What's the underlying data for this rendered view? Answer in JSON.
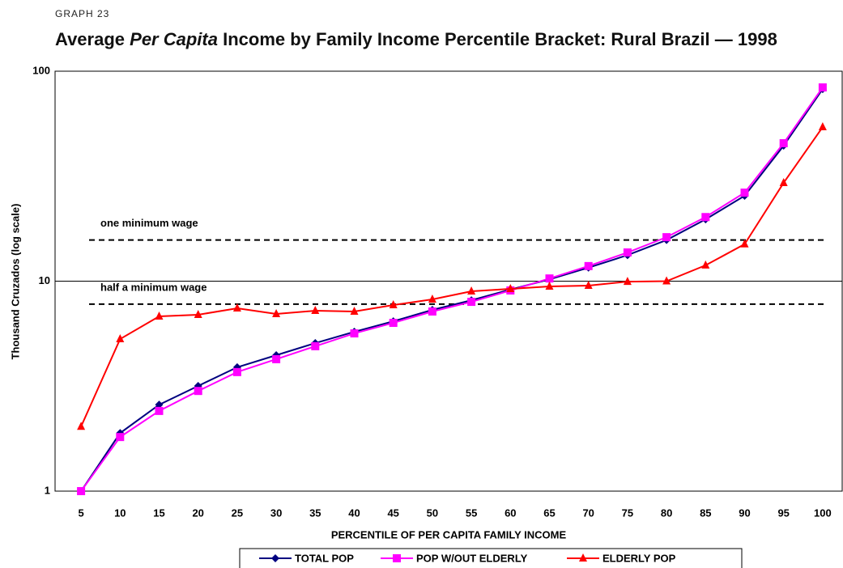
{
  "chart_data": {
    "type": "line",
    "kicker": "GRAPH 23",
    "title_parts": [
      "Average",
      "Per Capita",
      "Income by Family Income Percentile Bracket: Rural Brazil — 1998"
    ],
    "x_label": "PERCENTILE OF PER CAPITA FAMILY INCOME",
    "y_label": "Thousand Cruzados (log  scale)",
    "y_scale": "log",
    "ylim": [
      1,
      100
    ],
    "yticks": [
      1,
      10,
      100
    ],
    "grid": true,
    "categories": [
      "5",
      "10",
      "15",
      "20",
      "25",
      "30",
      "35",
      "40",
      "45",
      "50",
      "55",
      "60",
      "65",
      "70",
      "75",
      "80",
      "85",
      "90",
      "95",
      "100"
    ],
    "series": [
      {
        "name": "TOTAL POP",
        "color": "#000080",
        "marker": "diamond",
        "values": [
          1.0,
          1.89,
          2.58,
          3.17,
          3.89,
          4.44,
          5.07,
          5.74,
          6.44,
          7.3,
          8.11,
          9.12,
          10.2,
          11.6,
          13.3,
          15.7,
          19.7,
          25.5,
          44.2,
          82.2
        ]
      },
      {
        "name": "POP W/OUT ELDERLY",
        "color": "#ff00ff",
        "marker": "square",
        "values": [
          1.0,
          1.81,
          2.41,
          3.0,
          3.69,
          4.25,
          4.9,
          5.64,
          6.33,
          7.17,
          7.97,
          9.03,
          10.3,
          11.8,
          13.7,
          16.2,
          20.2,
          26.4,
          45.4,
          83.7
        ]
      },
      {
        "name": "ELDERLY POP",
        "color": "#ff0000",
        "marker": "triangle",
        "values": [
          2.03,
          5.3,
          6.8,
          6.92,
          7.43,
          6.98,
          7.23,
          7.17,
          7.7,
          8.19,
          8.95,
          9.19,
          9.44,
          9.52,
          9.95,
          10.0,
          11.9,
          15.0,
          29.4,
          54.2
        ]
      }
    ],
    "references": [
      {
        "label": "one minimum wage",
        "value": 15.7
      },
      {
        "label": "half a minimum wage",
        "value": 7.77
      }
    ]
  }
}
